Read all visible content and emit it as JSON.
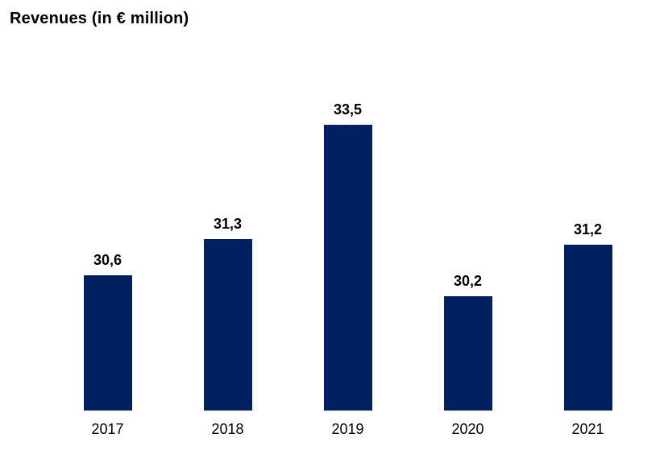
{
  "chart_data": {
    "type": "bar",
    "title": "Revenues (in € million)",
    "categories": [
      "2017",
      "2018",
      "2019",
      "2020",
      "2021"
    ],
    "values": [
      30.6,
      31.3,
      33.5,
      30.2,
      31.2
    ],
    "value_labels": [
      "30,6",
      "31,3",
      "33,5",
      "30,2",
      "31,2"
    ],
    "xlabel": "",
    "ylabel": "",
    "ylim": [
      28,
      34.4
    ],
    "grid": false,
    "legend": "none",
    "bar_color": "#002060",
    "label_color": "#000000",
    "background_color": "#ffffff"
  }
}
